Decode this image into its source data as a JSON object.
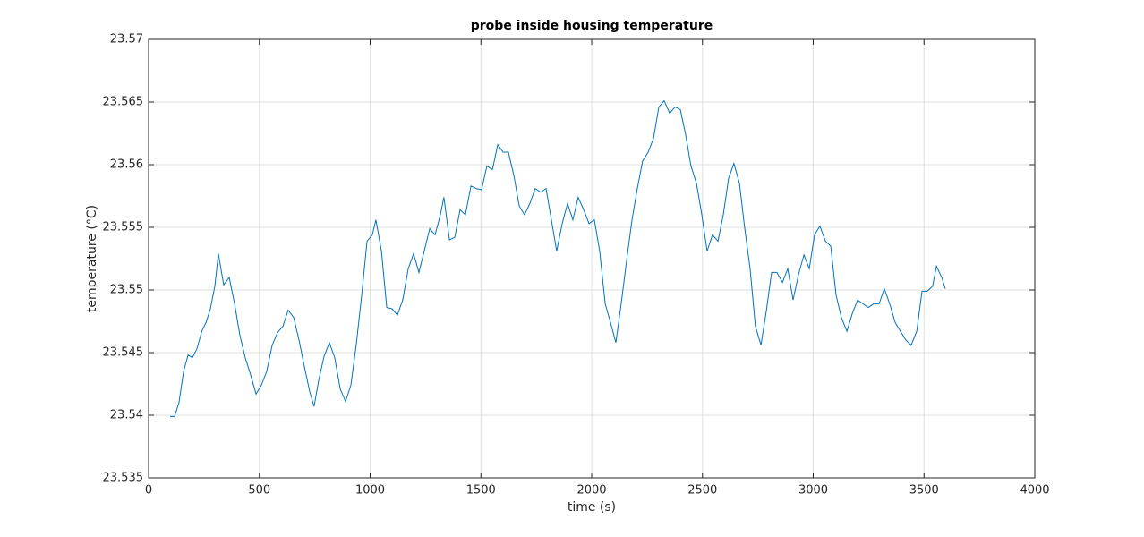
{
  "chart_data": {
    "type": "line",
    "title": "probe inside housing temperature",
    "xlabel": "time (s)",
    "ylabel": "temperature (°C)",
    "xlim": [
      0,
      4000
    ],
    "xticks": [
      0,
      500,
      1000,
      1500,
      2000,
      2500,
      3000,
      3500,
      4000
    ],
    "ylim": [
      23.535,
      23.57
    ],
    "yticks": [
      23.535,
      23.54,
      23.545,
      23.55,
      23.555,
      23.56,
      23.565,
      23.57
    ],
    "grid": true,
    "series": [
      {
        "name": "temperature",
        "color": "#0072bd",
        "x": [
          97,
          117,
          137,
          158,
          178,
          198,
          218,
          240,
          259,
          279,
          299,
          315,
          339,
          364,
          388,
          412,
          436,
          461,
          485,
          509,
          533,
          558,
          582,
          606,
          630,
          655,
          679,
          703,
          727,
          747,
          768,
          792,
          816,
          840,
          865,
          889,
          913,
          937,
          962,
          986,
          1010,
          1026,
          1051,
          1075,
          1099,
          1123,
          1147,
          1172,
          1196,
          1220,
          1244,
          1269,
          1293,
          1317,
          1333,
          1358,
          1382,
          1406,
          1430,
          1455,
          1479,
          1503,
          1527,
          1552,
          1576,
          1600,
          1624,
          1648,
          1673,
          1697,
          1721,
          1745,
          1770,
          1794,
          1818,
          1842,
          1867,
          1891,
          1915,
          1939,
          1964,
          1988,
          2012,
          2036,
          2061,
          2085,
          2109,
          2133,
          2158,
          2182,
          2206,
          2230,
          2255,
          2279,
          2303,
          2327,
          2352,
          2376,
          2400,
          2424,
          2448,
          2473,
          2497,
          2521,
          2545,
          2570,
          2594,
          2618,
          2642,
          2667,
          2691,
          2715,
          2739,
          2764,
          2788,
          2812,
          2836,
          2861,
          2885,
          2909,
          2933,
          2958,
          2982,
          3006,
          3030,
          3055,
          3079,
          3103,
          3127,
          3152,
          3176,
          3200,
          3224,
          3248,
          3273,
          3297,
          3321,
          3345,
          3370,
          3394,
          3418,
          3442,
          3467,
          3491,
          3515,
          3539,
          3556,
          3580,
          3596
        ],
        "values": [
          23.5399,
          23.5399,
          23.541,
          23.5435,
          23.5448,
          23.5446,
          23.5453,
          23.5467,
          23.5474,
          23.5485,
          23.5503,
          23.5529,
          23.5504,
          23.551,
          23.5489,
          23.5464,
          23.5446,
          23.5432,
          23.5417,
          23.5424,
          23.5435,
          23.5456,
          23.5466,
          23.5471,
          23.5484,
          23.5478,
          23.546,
          23.5439,
          23.5419,
          23.5407,
          23.5428,
          23.5447,
          23.5458,
          23.5446,
          23.5421,
          23.5411,
          23.5424,
          23.5456,
          23.5496,
          23.5539,
          23.5544,
          23.5556,
          23.5531,
          23.5486,
          23.5485,
          23.548,
          23.5492,
          23.5517,
          23.5529,
          23.5514,
          23.5531,
          23.5549,
          23.5544,
          23.556,
          23.5574,
          23.554,
          23.5542,
          23.5564,
          23.556,
          23.5583,
          23.5581,
          23.558,
          23.5599,
          23.5596,
          23.5616,
          23.561,
          23.561,
          23.5592,
          23.5567,
          23.556,
          23.5569,
          23.5581,
          23.5578,
          23.5581,
          23.5556,
          23.5531,
          23.5553,
          23.5569,
          23.5556,
          23.5574,
          23.5564,
          23.5553,
          23.5556,
          23.5531,
          23.5489,
          23.5474,
          23.5458,
          23.5489,
          23.5524,
          23.5556,
          23.5581,
          23.5603,
          23.561,
          23.5621,
          23.5646,
          23.5651,
          23.5641,
          23.5646,
          23.5644,
          23.5624,
          23.5599,
          23.5585,
          23.556,
          23.5531,
          23.5544,
          23.5539,
          23.556,
          23.5589,
          23.5601,
          23.5585,
          23.5549,
          23.5517,
          23.5471,
          23.5456,
          23.5483,
          23.5514,
          23.5514,
          23.5506,
          23.5517,
          23.5492,
          23.5512,
          23.5528,
          23.5517,
          23.5544,
          23.5551,
          23.5539,
          23.5535,
          23.5496,
          23.5478,
          23.5467,
          23.5481,
          23.5492,
          23.5489,
          23.5486,
          23.5489,
          23.5489,
          23.5501,
          23.5489,
          23.5474,
          23.5467,
          23.546,
          23.5456,
          23.5467,
          23.5499,
          23.5499,
          23.5503,
          23.5519,
          23.551,
          23.5501
        ]
      }
    ]
  }
}
